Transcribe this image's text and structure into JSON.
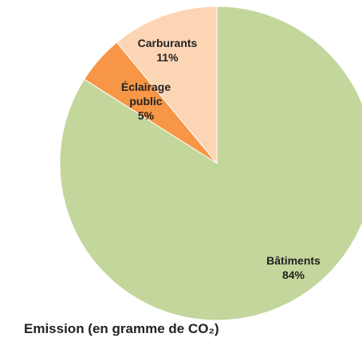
{
  "chart_data": {
    "type": "pie",
    "title": "Emission (en gramme de CO₂)",
    "categories": [
      "Bâtiments",
      "Éclairage public",
      "Carburants"
    ],
    "values": [
      84,
      5,
      11
    ],
    "value_labels": [
      "84%",
      "5%",
      "11%"
    ],
    "colors": [
      "#c3d69b",
      "#f79646",
      "#fcd5b5"
    ]
  }
}
